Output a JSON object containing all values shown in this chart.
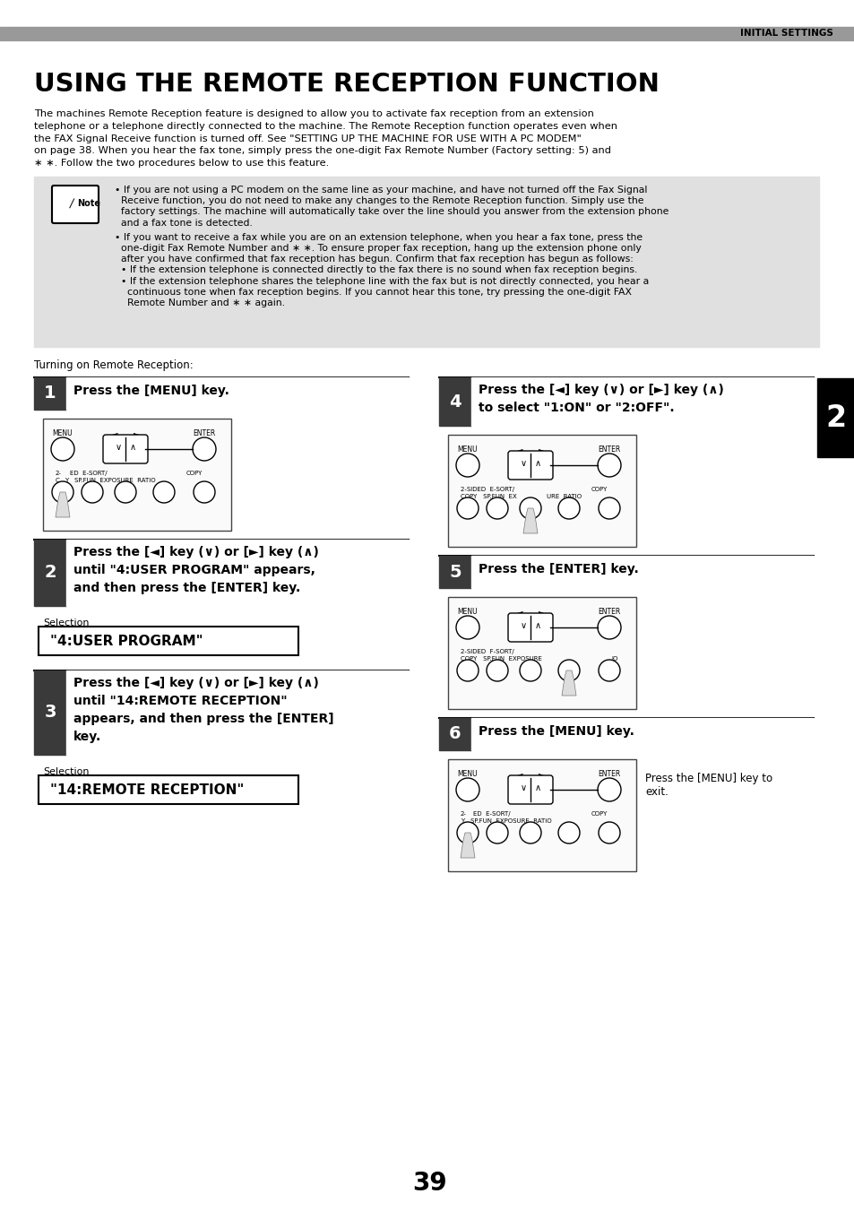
{
  "page_header": "INITIAL SETTINGS",
  "title": "USING THE REMOTE RECEPTION FUNCTION",
  "intro_lines": [
    "The machines Remote Reception feature is designed to allow you to activate fax reception from an extension",
    "telephone or a telephone directly connected to the machine. The Remote Reception function operates even when",
    "the FAX Signal Receive function is turned off. See \"SETTING UP THE MACHINE FOR USE WITH A PC MODEM\"",
    "on page 38. When you hear the fax tone, simply press the one-digit Fax Remote Number (Factory setting: 5) and",
    "∗ ∗. Follow the two procedures below to use this feature."
  ],
  "note_line1a": "• If you are not using a PC modem on the same line as your machine, and have not turned off the Fax Signal",
  "note_line1b": "  Receive function, you do not need to make any changes to the Remote Reception function. Simply use the",
  "note_line1c": "  factory settings. The machine will automatically take over the line should you answer from the extension phone",
  "note_line1d": "  and a fax tone is detected.",
  "note_line2a": "• If you want to receive a fax while you are on an extension telephone, when you hear a fax tone, press the",
  "note_line2b": "  one-digit Fax Remote Number and ∗ ∗. To ensure proper fax reception, hang up the extension phone only",
  "note_line2c": "  after you have confirmed that fax reception has begun. Confirm that fax reception has begun as follows:",
  "note_line3a": "  • If the extension telephone is connected directly to the fax there is no sound when fax reception begins.",
  "note_line4a": "  • If the extension telephone shares the telephone line with the fax but is not directly connected, you hear a",
  "note_line4b": "    continuous tone when fax reception begins. If you cannot hear this tone, try pressing the one-digit FAX",
  "note_line4c": "    Remote Number and ∗ ∗ again.",
  "turning_on_text": "Turning on Remote Reception:",
  "step1_line1": "Press the [MENU] key.",
  "step2_line1": "Press the [◄] key (∨) or [►] key (∧)",
  "step2_line2": "until \"4:USER PROGRAM\" appears,",
  "step2_line3": "and then press the [ENTER] key.",
  "step2_selection": "Selection",
  "step2_box": "\"4:USER PROGRAM\"",
  "step3_line1": "Press the [◄] key (∨) or [►] key (∧)",
  "step3_line2": "until \"14:REMOTE RECEPTION\"",
  "step3_line3": "appears, and then press the [ENTER]",
  "step3_line4": "key.",
  "step3_selection": "Selection",
  "step3_box": "\"14:REMOTE RECEPTION\"",
  "step4_line1": "Press the [◄] key (∨) or [►] key (∧)",
  "step4_line2": "to select \"1:ON\" or \"2:OFF\".",
  "step5_line1": "Press the [ENTER] key.",
  "step6_line1": "Press the [MENU] key.",
  "step6_note": "Press the [MENU] key to\nexit.",
  "page_number": "39",
  "tab_number": "2",
  "bg_color": "#ffffff",
  "header_bar_color": "#999999",
  "note_bg_color": "#e0e0e0",
  "tab_color": "#000000",
  "tab_text_color": "#ffffff",
  "step_num_bg": "#3a3a3a",
  "step_line_color": "#000000"
}
